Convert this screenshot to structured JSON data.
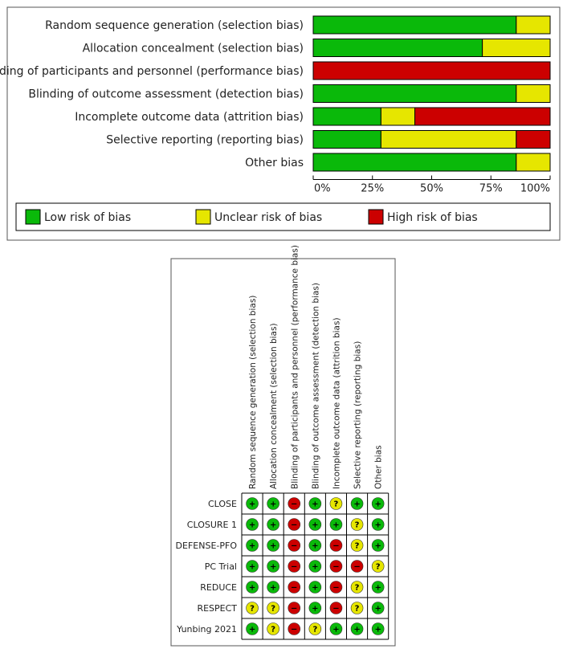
{
  "colors": {
    "low": "#0ab90a",
    "unclear": "#e6e600",
    "high": "#cc0000"
  },
  "symbols": {
    "low": "+",
    "unclear": "?",
    "high": "−"
  },
  "chart_data": [
    {
      "type": "bar",
      "orientation": "horizontal-stacked-percent",
      "title": "",
      "categories": [
        "Random sequence generation (selection bias)",
        "Allocation concealment (selection bias)",
        "Blinding of participants and personnel (performance bias)",
        "Blinding of outcome assessment (detection bias)",
        "Incomplete outcome data (attrition bias)",
        "Selective reporting (reporting bias)",
        "Other bias"
      ],
      "series": [
        {
          "name": "Low risk of bias",
          "key": "low",
          "values": [
            85.7,
            71.4,
            0,
            85.7,
            28.6,
            28.6,
            85.7
          ]
        },
        {
          "name": "Unclear risk of bias",
          "key": "unclear",
          "values": [
            14.3,
            28.6,
            0,
            14.3,
            14.3,
            57.1,
            14.3
          ]
        },
        {
          "name": "High risk of bias",
          "key": "high",
          "values": [
            0,
            0,
            100,
            0,
            57.1,
            14.3,
            0
          ]
        }
      ],
      "xlim": [
        0,
        100
      ],
      "xticks": [
        "0%",
        "25%",
        "50%",
        "75%",
        "100%"
      ],
      "legend": [
        "Low risk of bias",
        "Unclear risk of bias",
        "High risk of bias"
      ],
      "legend_position": "bottom"
    },
    {
      "type": "heatmap",
      "title": "",
      "columns": [
        "Random sequence generation (selection bias)",
        "Allocation concealment (selection bias)",
        "Blinding of participants and personnel (performance bias)",
        "Blinding of outcome assessment (detection bias)",
        "Incomplete outcome data (attrition bias)",
        "Selective reporting (reporting bias)",
        "Other bias"
      ],
      "rows": [
        {
          "study": "CLOSE",
          "ratings": [
            "low",
            "low",
            "high",
            "low",
            "unclear",
            "low",
            "low"
          ]
        },
        {
          "study": "CLOSURE 1",
          "ratings": [
            "low",
            "low",
            "high",
            "low",
            "low",
            "unclear",
            "low"
          ]
        },
        {
          "study": "DEFENSE-PFO",
          "ratings": [
            "low",
            "low",
            "high",
            "low",
            "high",
            "unclear",
            "low"
          ]
        },
        {
          "study": "PC Trial",
          "ratings": [
            "low",
            "low",
            "high",
            "low",
            "high",
            "high",
            "unclear"
          ]
        },
        {
          "study": "REDUCE",
          "ratings": [
            "low",
            "low",
            "high",
            "low",
            "high",
            "unclear",
            "low"
          ]
        },
        {
          "study": "RESPECT",
          "ratings": [
            "unclear",
            "unclear",
            "high",
            "low",
            "high",
            "unclear",
            "low"
          ]
        },
        {
          "study": "Yunbing 2021",
          "ratings": [
            "low",
            "unclear",
            "high",
            "unclear",
            "low",
            "low",
            "low"
          ]
        }
      ]
    }
  ]
}
